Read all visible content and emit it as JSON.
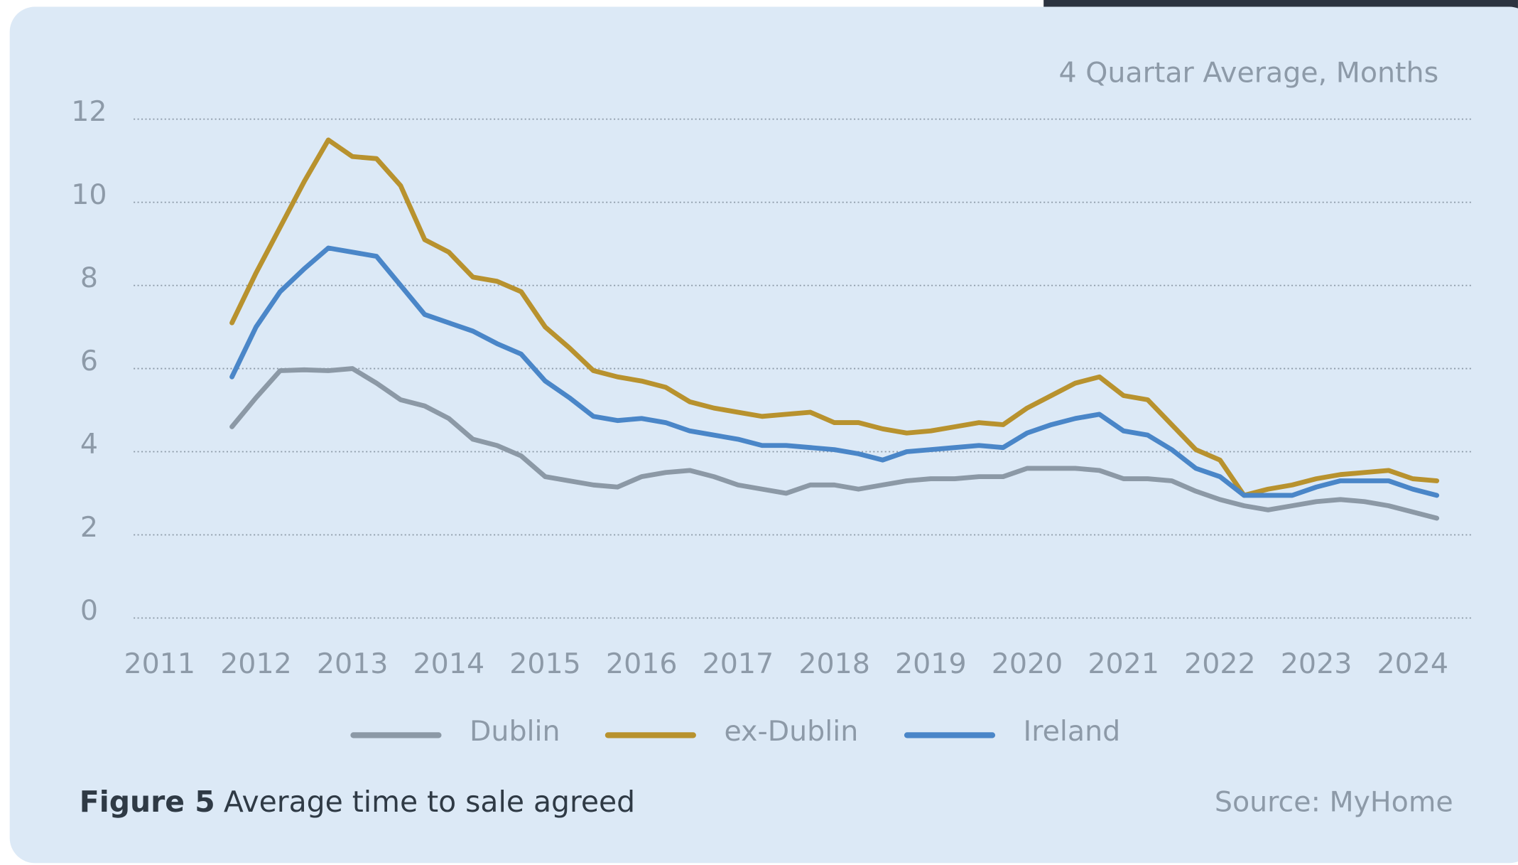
{
  "chart_data": {
    "type": "line",
    "subtitle": "4 Quartar Average, Months",
    "figure_label": "Figure 5",
    "caption": "Average time to sale agreed",
    "source": "Source: MyHome",
    "x": [
      2011.75,
      2012,
      2012.25,
      2012.5,
      2012.75,
      2013,
      2013.25,
      2013.5,
      2013.75,
      2014,
      2014.25,
      2014.5,
      2014.75,
      2015,
      2015.25,
      2015.5,
      2015.75,
      2016,
      2016.25,
      2016.5,
      2016.75,
      2017,
      2017.25,
      2017.5,
      2017.75,
      2018,
      2018.25,
      2018.5,
      2018.75,
      2019,
      2019.25,
      2019.5,
      2019.75,
      2020,
      2020.25,
      2020.5,
      2020.75,
      2021,
      2021.25,
      2021.5,
      2021.75,
      2022,
      2022.25,
      2022.5,
      2022.75,
      2023,
      2023.25,
      2023.5,
      2023.75,
      2024,
      2024.25
    ],
    "series": [
      {
        "name": "Dublin",
        "color": "#8c99a6",
        "values": [
          4.6,
          5.3,
          5.95,
          5.97,
          5.95,
          6.0,
          5.65,
          5.25,
          5.1,
          4.8,
          4.3,
          4.15,
          3.9,
          3.4,
          3.3,
          3.2,
          3.15,
          3.4,
          3.5,
          3.55,
          3.4,
          3.2,
          3.1,
          3.0,
          3.2,
          3.2,
          3.1,
          3.2,
          3.3,
          3.35,
          3.35,
          3.4,
          3.4,
          3.6,
          3.6,
          3.6,
          3.55,
          3.35,
          3.35,
          3.3,
          3.05,
          2.85,
          2.7,
          2.6,
          2.7,
          2.8,
          2.85,
          2.8,
          2.7,
          2.55,
          2.4
        ]
      },
      {
        "name": "ex-Dublin",
        "color": "#b8922e",
        "values": [
          7.1,
          8.3,
          9.4,
          10.5,
          11.5,
          11.1,
          11.05,
          10.4,
          9.1,
          8.8,
          8.2,
          8.1,
          7.85,
          7.0,
          6.5,
          5.95,
          5.8,
          5.7,
          5.55,
          5.2,
          5.05,
          4.95,
          4.85,
          4.9,
          4.95,
          4.7,
          4.7,
          4.55,
          4.45,
          4.5,
          4.6,
          4.7,
          4.65,
          5.05,
          5.35,
          5.65,
          5.8,
          5.35,
          5.25,
          4.65,
          4.05,
          3.8,
          2.95,
          3.1,
          3.2,
          3.35,
          3.45,
          3.5,
          3.55,
          3.35,
          3.3
        ]
      },
      {
        "name": "Ireland",
        "color": "#4a86c8",
        "values": [
          5.8,
          7.0,
          7.85,
          8.4,
          8.9,
          8.8,
          8.7,
          8.0,
          7.3,
          7.1,
          6.9,
          6.6,
          6.35,
          5.7,
          5.3,
          4.85,
          4.75,
          4.8,
          4.7,
          4.5,
          4.4,
          4.3,
          4.15,
          4.15,
          4.1,
          4.05,
          3.95,
          3.8,
          4.0,
          4.05,
          4.1,
          4.15,
          4.1,
          4.45,
          4.65,
          4.8,
          4.9,
          4.5,
          4.4,
          4.05,
          3.6,
          3.4,
          2.95,
          2.95,
          2.95,
          3.15,
          3.3,
          3.3,
          3.3,
          3.1,
          2.95
        ]
      }
    ],
    "xlim": [
      2010.73,
      2024.63
    ],
    "xticks": [
      2011,
      2012,
      2013,
      2014,
      2015,
      2016,
      2017,
      2018,
      2019,
      2020,
      2021,
      2022,
      2023,
      2024
    ],
    "ylim": [
      0,
      12
    ],
    "yticks": [
      0,
      2,
      4,
      6,
      8,
      10,
      12
    ],
    "grid": true
  }
}
